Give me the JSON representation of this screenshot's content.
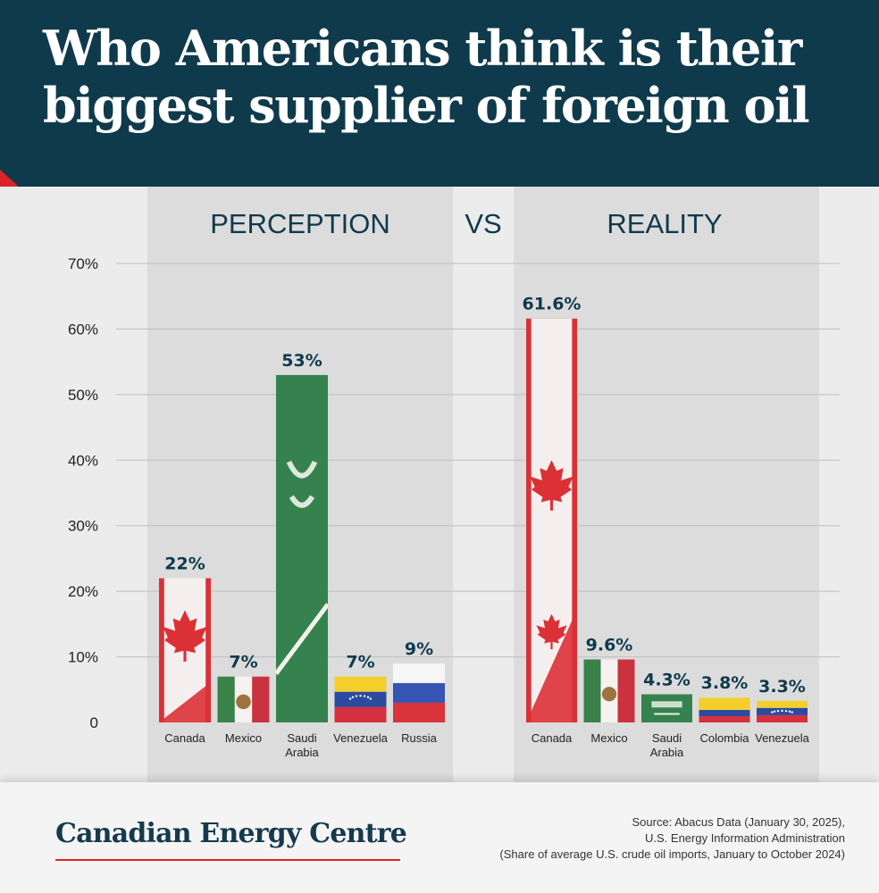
{
  "header": {
    "title_line1": "Who Americans think is their",
    "title_line2": "biggest supplier of foreign oil"
  },
  "panels": {
    "left_label": "PERCEPTION",
    "vs_label": "VS",
    "right_label": "REALITY"
  },
  "colors": {
    "header_bg": "#0f3a4c",
    "accent_red": "#d9252a",
    "panel_bg": "#dcdcdc",
    "page_bg": "#ececec",
    "label_color": "#0f3a4c"
  },
  "chart_data": [
    {
      "type": "bar",
      "title": "PERCEPTION",
      "categories": [
        "Canada",
        "Mexico",
        "Saudi Arabia",
        "Venezuela",
        "Russia"
      ],
      "category_lines": [
        [
          "Canada"
        ],
        [
          "Mexico"
        ],
        [
          "Saudi",
          "Arabia"
        ],
        [
          "Venezuela"
        ],
        [
          "Russia"
        ]
      ],
      "values": [
        22,
        7,
        53,
        7,
        9
      ],
      "data_labels": [
        "22%",
        "7%",
        "53%",
        "7%",
        "9%"
      ],
      "flags": [
        "flag-canada",
        "flag-mexico",
        "flag-saudi-arabia",
        "flag-venezuela",
        "flag-russia"
      ],
      "ylim": [
        0,
        70
      ]
    },
    {
      "type": "bar",
      "title": "REALITY",
      "categories": [
        "Canada",
        "Mexico",
        "Saudi Arabia",
        "Colombia",
        "Venezuela"
      ],
      "category_lines": [
        [
          "Canada"
        ],
        [
          "Mexico"
        ],
        [
          "Saudi",
          "Arabia"
        ],
        [
          "Colombia"
        ],
        [
          "Venezuela"
        ]
      ],
      "values": [
        61.6,
        9.6,
        4.3,
        3.8,
        3.3
      ],
      "data_labels": [
        "61.6%",
        "9.6%",
        "4.3%",
        "3.8%",
        "3.3%"
      ],
      "flags": [
        "flag-canada",
        "flag-mexico",
        "flag-saudi-arabia",
        "flag-colombia",
        "flag-venezuela"
      ],
      "ylim": [
        0,
        70
      ]
    }
  ],
  "y_axis": {
    "ticks": [
      0,
      10,
      20,
      30,
      40,
      50,
      60,
      70
    ],
    "tick_labels": [
      "0",
      "10%",
      "20%",
      "30%",
      "40%",
      "50%",
      "60%",
      "70%"
    ],
    "grid": true
  },
  "footer": {
    "brand": "Canadian Energy Centre",
    "source_line1": "Source: Abacus Data (January 30, 2025),",
    "source_line2": "U.S. Energy Information Administration",
    "source_line3": "(Share of average U.S. crude oil imports, January to October 2024)"
  }
}
